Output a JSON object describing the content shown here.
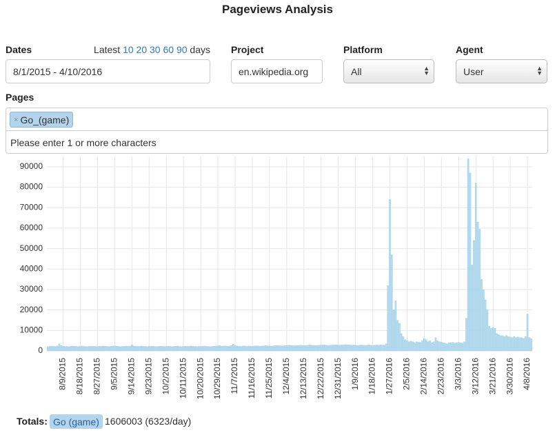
{
  "header": {
    "title": "Pageviews Analysis"
  },
  "form": {
    "dates": {
      "label": "Dates",
      "latest": "Latest",
      "ranges": [
        "10",
        "20",
        "30",
        "60",
        "90"
      ],
      "days": "days",
      "value": "8/1/2015 - 4/10/2016"
    },
    "project": {
      "label": "Project",
      "value": "en.wikipedia.org"
    },
    "platform": {
      "label": "Platform",
      "value": "All"
    },
    "agent": {
      "label": "Agent",
      "value": "User"
    },
    "pages": {
      "label": "Pages",
      "tags": [
        "Go_(game)"
      ],
      "placeholder": "Please enter 1 or more characters"
    }
  },
  "chart_data": {
    "type": "bar",
    "grid": true,
    "ylim": [
      0,
      95000
    ],
    "yticks": [
      0,
      10000,
      20000,
      30000,
      40000,
      50000,
      60000,
      70000,
      80000,
      90000
    ],
    "categories": [
      null,
      null,
      null,
      null,
      null,
      null,
      null,
      null,
      "8/9/2015",
      null,
      null,
      null,
      null,
      null,
      null,
      null,
      null,
      "8/18/2015",
      null,
      null,
      null,
      null,
      null,
      null,
      null,
      null,
      "8/27/2015",
      null,
      null,
      null,
      null,
      null,
      null,
      null,
      null,
      "9/5/2015",
      null,
      null,
      null,
      null,
      null,
      null,
      null,
      null,
      "9/14/2015",
      null,
      null,
      null,
      null,
      null,
      null,
      null,
      null,
      "9/23/2015",
      null,
      null,
      null,
      null,
      null,
      null,
      null,
      null,
      "10/2/2015",
      null,
      null,
      null,
      null,
      null,
      null,
      null,
      null,
      "10/11/2015",
      null,
      null,
      null,
      null,
      null,
      null,
      null,
      null,
      "10/20/2015",
      null,
      null,
      null,
      null,
      null,
      null,
      null,
      null,
      "10/29/2015",
      null,
      null,
      null,
      null,
      null,
      null,
      null,
      null,
      "11/7/2015",
      null,
      null,
      null,
      null,
      null,
      null,
      null,
      null,
      "11/16/2015",
      null,
      null,
      null,
      null,
      null,
      null,
      null,
      null,
      "11/25/2015",
      null,
      null,
      null,
      null,
      null,
      null,
      null,
      null,
      "12/4/2015",
      null,
      null,
      null,
      null,
      null,
      null,
      null,
      null,
      "12/13/2015",
      null,
      null,
      null,
      null,
      null,
      null,
      null,
      null,
      "12/22/2015",
      null,
      null,
      null,
      null,
      null,
      null,
      null,
      null,
      "12/31/2015",
      null,
      null,
      null,
      null,
      null,
      null,
      null,
      null,
      "1/9/2016",
      null,
      null,
      null,
      null,
      null,
      null,
      null,
      null,
      "1/18/2016",
      null,
      null,
      null,
      null,
      null,
      null,
      null,
      null,
      "1/27/2016",
      null,
      null,
      null,
      null,
      null,
      null,
      null,
      null,
      "2/5/2016",
      null,
      null,
      null,
      null,
      null,
      null,
      null,
      null,
      "2/14/2016",
      null,
      null,
      null,
      null,
      null,
      null,
      null,
      null,
      "2/23/2016",
      null,
      null,
      null,
      null,
      null,
      null,
      null,
      null,
      "3/3/2016",
      null,
      null,
      null,
      null,
      null,
      null,
      null,
      null,
      "3/12/2016",
      null,
      null,
      null,
      null,
      null,
      null,
      null,
      null,
      "3/21/2016",
      null,
      null,
      null,
      null,
      null,
      null,
      null,
      null,
      "3/30/2016",
      null,
      null,
      null,
      null,
      null,
      null,
      null,
      null,
      "4/8/2016",
      null,
      null
    ],
    "series": [
      {
        "name": "Go (game)",
        "color": "#b3d9ee",
        "values": [
          2100,
          2300,
          2400,
          2300,
          2200,
          2400,
          3500,
          2600,
          2300,
          2200,
          2200,
          2100,
          2300,
          2400,
          2300,
          2200,
          2100,
          2300,
          2400,
          2200,
          2100,
          2200,
          2300,
          2200,
          2300,
          2100,
          2200,
          2300,
          2200,
          2400,
          2300,
          2200,
          2100,
          2300,
          2400,
          2500,
          2300,
          2200,
          2100,
          2200,
          2300,
          2400,
          2200,
          2300,
          3000,
          2400,
          2300,
          2200,
          2300,
          2400,
          2300,
          2200,
          2100,
          2300,
          2200,
          2300,
          2200,
          2100,
          2200,
          2300,
          2200,
          2100,
          2200,
          2300,
          2200,
          2100,
          2200,
          2300,
          2400,
          2200,
          2100,
          2200,
          2300,
          2200,
          2300,
          2400,
          2300,
          2200,
          2100,
          2300,
          2200,
          2300,
          2400,
          2300,
          2200,
          2100,
          2200,
          2300,
          2400,
          2500,
          2600,
          2300,
          2400,
          2500,
          2300,
          2400,
          2600,
          3300,
          2700,
          2400,
          2300,
          2200,
          2400,
          2500,
          2300,
          2400,
          2300,
          2200,
          2400,
          2500,
          2400,
          2300,
          2400,
          2500,
          2600,
          2500,
          2400,
          2300,
          2500,
          2600,
          2700,
          2600,
          2500,
          2400,
          2600,
          2700,
          2800,
          2700,
          2600,
          2500,
          2600,
          2700,
          2800,
          2700,
          2600,
          2700,
          2800,
          2900,
          2800,
          2700,
          2600,
          2700,
          2800,
          2900,
          3000,
          2900,
          2800,
          2700,
          2800,
          2900,
          2900,
          3000,
          2900,
          2800,
          2900,
          3000,
          3100,
          3000,
          2900,
          2800,
          2900,
          2800,
          2700,
          2800,
          2900,
          2800,
          2700,
          2800,
          2900,
          2800,
          2700,
          2800,
          2900,
          2800,
          3000,
          2900,
          2800,
          3500,
          32000,
          74000,
          47000,
          20000,
          24500,
          15000,
          13500,
          8500,
          7000,
          5500,
          5000,
          4500,
          4800,
          4500,
          4000,
          4500,
          4300,
          4200,
          5000,
          6000,
          5500,
          4500,
          5000,
          4000,
          4500,
          6500,
          5000,
          4500,
          4300,
          4000,
          3800,
          3500,
          4000,
          4000,
          4200,
          3800,
          4000,
          4200,
          4000,
          3800,
          4500,
          16000,
          94000,
          87000,
          42000,
          54000,
          82000,
          63000,
          59500,
          35000,
          30000,
          25000,
          20000,
          12000,
          11000,
          11500,
          11000,
          8500,
          8000,
          7500,
          7500,
          7000,
          7500,
          7000,
          6800,
          6500,
          7000,
          6500,
          6800,
          6500,
          6500,
          6200,
          7000,
          18000,
          6500,
          6000
        ]
      }
    ]
  },
  "totals": {
    "label": "Totals:",
    "page": "Go (game)",
    "value": "1606003 (6323/day)"
  }
}
